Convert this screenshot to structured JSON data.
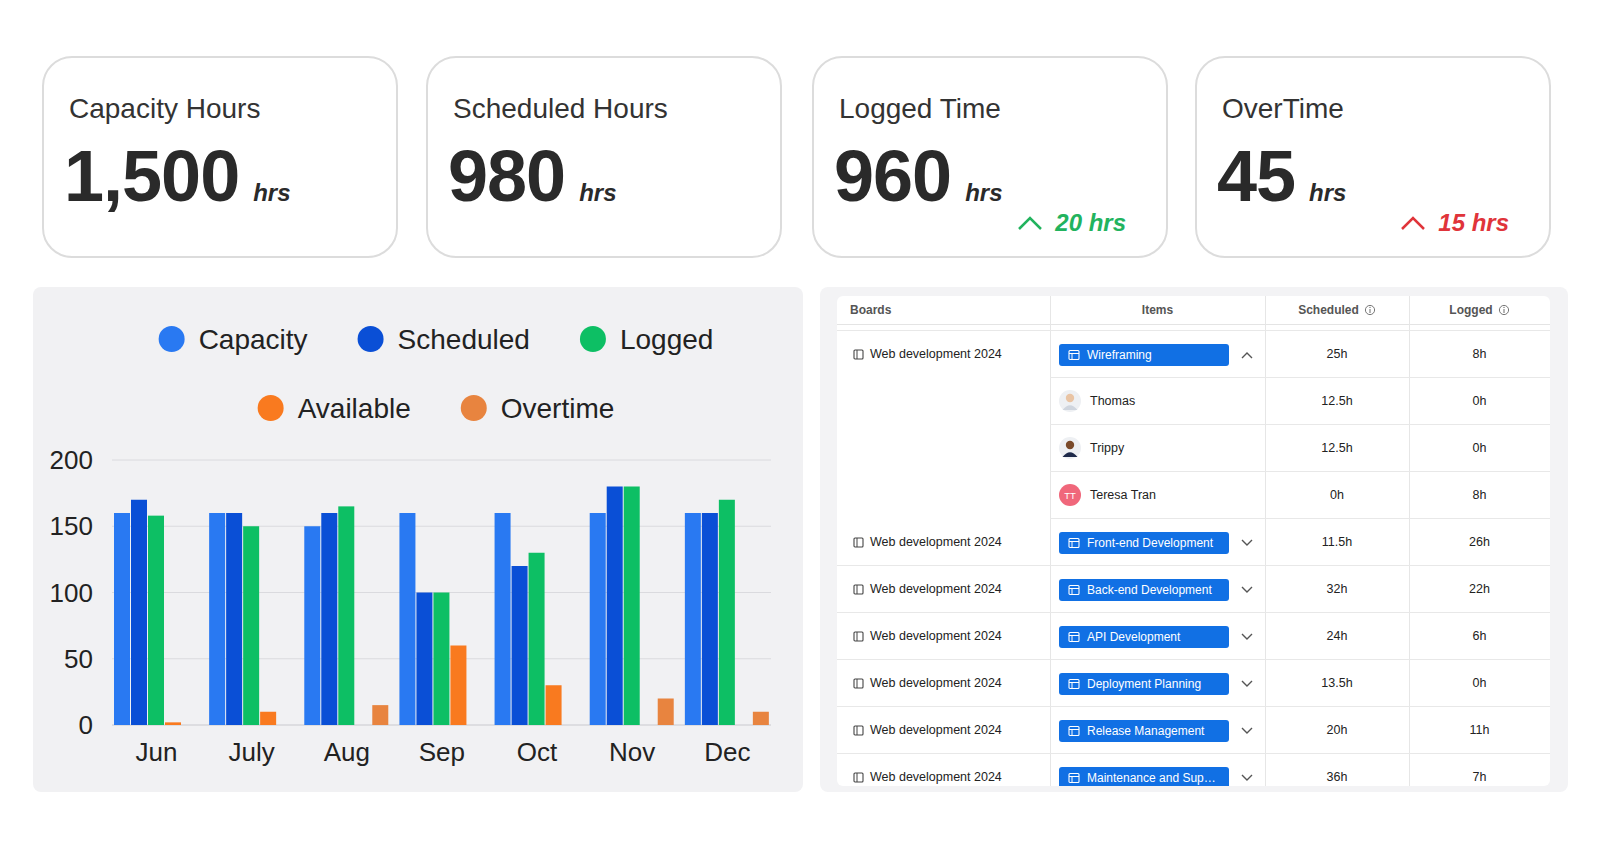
{
  "cards": [
    {
      "title": "Capacity Hours",
      "value": "1,500",
      "unit": "hrs"
    },
    {
      "title": "Scheduled Hours",
      "value": "980",
      "unit": "hrs"
    },
    {
      "title": "Logged Time",
      "value": "960",
      "unit": "hrs",
      "change": "20 hrs",
      "color": "#22b35e"
    },
    {
      "title": "OverTime",
      "value": "45",
      "unit": "hrs",
      "change": "15 hrs",
      "color": "#e0343a"
    }
  ],
  "chart_data": {
    "type": "bar",
    "categories": [
      "Jun",
      "July",
      "Aug",
      "Sep",
      "Oct",
      "Nov",
      "Dec"
    ],
    "series": [
      {
        "name": "Capacity",
        "color": "#2979f2",
        "values": [
          160,
          160,
          150,
          160,
          160,
          160,
          160
        ]
      },
      {
        "name": "Scheduled",
        "color": "#0a4fd6",
        "values": [
          170,
          160,
          160,
          100,
          120,
          180,
          160
        ]
      },
      {
        "name": "Logged",
        "color": "#0dbf64",
        "values": [
          158,
          150,
          165,
          100,
          130,
          180,
          170
        ]
      },
      {
        "name": "Available",
        "color": "#f97a1f",
        "values": [
          2,
          10,
          null,
          60,
          30,
          null,
          null
        ]
      },
      {
        "name": "Overtime",
        "color": "#e8843f",
        "values": [
          null,
          null,
          15,
          null,
          null,
          20,
          10
        ]
      }
    ],
    "ylim": [
      0,
      200
    ],
    "yticks": [
      0,
      50,
      100,
      150,
      200
    ],
    "grid": true,
    "legend": "top"
  },
  "table": {
    "columns": [
      "Boards",
      "Items",
      "Scheduled",
      "Logged"
    ],
    "rows": [
      {
        "board": "Web development 2024",
        "item": "Wireframing",
        "scheduled": "25h",
        "logged": "8h"
      },
      {
        "person": "Thomas",
        "scheduled": "12.5h",
        "logged": "0h"
      },
      {
        "person": "Trippy",
        "scheduled": "12.5h",
        "logged": "0h"
      },
      {
        "person": "Teresa Tran",
        "initials": "TT",
        "scheduled": "0h",
        "logged": "8h"
      },
      {
        "board": "Web development 2024",
        "item": "Front-end Development",
        "scheduled": "11.5h",
        "logged": "26h"
      },
      {
        "board": "Web development 2024",
        "item": "Back-end Development",
        "scheduled": "32h",
        "logged": "22h"
      },
      {
        "board": "Web development 2024",
        "item": "API Development",
        "scheduled": "24h",
        "logged": "6h"
      },
      {
        "board": "Web development 2024",
        "item": "Deployment Planning",
        "scheduled": "13.5h",
        "logged": "0h"
      },
      {
        "board": "Web development 2024",
        "item": "Release Management",
        "scheduled": "20h",
        "logged": "11h"
      },
      {
        "board": "Web development 2024",
        "item": "Maintenance and Sup…",
        "scheduled": "36h",
        "logged": "7h"
      }
    ]
  }
}
